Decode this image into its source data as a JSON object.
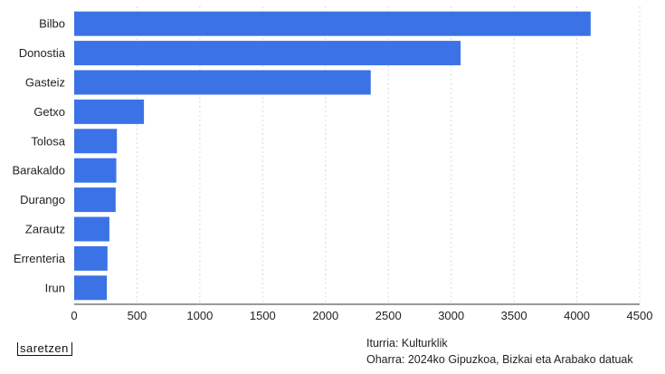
{
  "chart_data": {
    "type": "bar",
    "orientation": "horizontal",
    "categories": [
      "Bilbo",
      "Donostia",
      "Gasteiz",
      "Getxo",
      "Tolosa",
      "Barakaldo",
      "Durango",
      "Zarautz",
      "Errenteria",
      "Irun"
    ],
    "values": [
      4110,
      3075,
      2360,
      555,
      340,
      335,
      330,
      280,
      265,
      260
    ],
    "xlim": [
      0,
      4500
    ],
    "xticks": [
      "0",
      "500",
      "1000",
      "1500",
      "2000",
      "2500",
      "3000",
      "3500",
      "4000",
      "4500"
    ],
    "bar_color": "#3b73e6",
    "grid": true,
    "legend": "none"
  },
  "footer": {
    "brand": "saretzen",
    "source": "Iturria: Kulturklik",
    "note": "Oharra: 2024ko Gipuzkoa, Bizkai eta Arabako datuak"
  }
}
